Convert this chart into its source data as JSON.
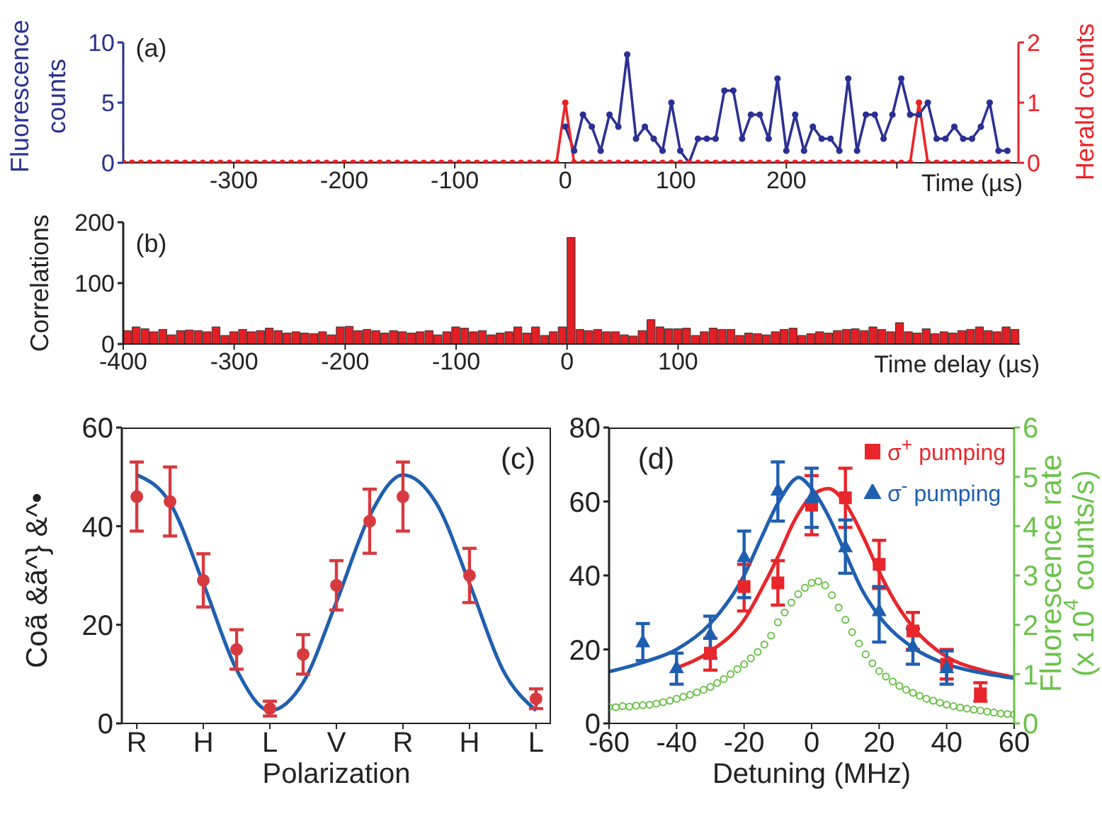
{
  "chart_data": [
    {
      "type": "line",
      "ylabel": "Fluorescence\ncounts",
      "y2label": "Herald counts",
      "xlabel": "Time (µs)",
      "annotations": [
        "(a)"
      ],
      "marker": "circle",
      "xlim": [
        -400,
        410
      ],
      "xticks": [
        -300,
        -200,
        -100,
        0,
        100,
        200,
        {
          "value": 300,
          "label": null
        }
      ],
      "ylim": [
        0,
        10
      ],
      "yticks": [
        0,
        5,
        10
      ],
      "y2lim": [
        0,
        2
      ],
      "y2ticks": [
        0,
        1,
        2
      ],
      "series": [
        {
          "color": "#2b3192",
          "x": [
            0,
            8,
            16,
            24,
            32,
            40,
            48,
            56,
            64,
            72,
            80,
            88,
            96,
            104,
            112,
            120,
            128,
            136,
            144,
            152,
            160,
            168,
            176,
            184,
            192,
            200,
            208,
            216,
            224,
            232,
            240,
            248,
            256,
            264,
            272,
            280,
            288,
            296,
            304,
            312,
            320,
            328,
            336,
            344,
            352,
            360,
            368,
            376,
            384,
            392,
            400
          ],
          "values": [
            3,
            1,
            4,
            3,
            1,
            4,
            3,
            9,
            2,
            3,
            2,
            1,
            5,
            1,
            0,
            2,
            2,
            2,
            6,
            6,
            2,
            4,
            4,
            2,
            7,
            1,
            4,
            1,
            3,
            2,
            2,
            1,
            7,
            1,
            4,
            4,
            2,
            4,
            7,
            4,
            4,
            5,
            2,
            2,
            3,
            2,
            2,
            3,
            5,
            1,
            1
          ]
        },
        {
          "color": "#ee2226",
          "axis": "y2",
          "x": [
            -400,
            -392,
            -384,
            -376,
            -368,
            -360,
            -352,
            -344,
            -336,
            -328,
            -320,
            -312,
            -304,
            -296,
            -288,
            -280,
            -272,
            -264,
            -256,
            -248,
            -240,
            -232,
            -224,
            -216,
            -208,
            -200,
            -192,
            -184,
            -176,
            -168,
            -160,
            -152,
            -144,
            -136,
            -128,
            -120,
            -112,
            -104,
            -96,
            -88,
            -80,
            -72,
            -64,
            -56,
            -48,
            -40,
            -32,
            -24,
            -16,
            -8,
            0,
            8,
            16,
            24,
            32,
            40,
            48,
            56,
            64,
            72,
            80,
            88,
            96,
            104,
            112,
            120,
            128,
            136,
            144,
            152,
            160,
            168,
            176,
            184,
            192,
            200,
            208,
            216,
            224,
            232,
            240,
            248,
            256,
            264,
            272,
            280,
            288,
            296,
            304,
            312,
            320,
            328,
            336,
            344,
            352,
            360,
            368,
            376,
            384,
            392,
            400
          ],
          "values": [
            0,
            0,
            0,
            0,
            0,
            0,
            0,
            0,
            0,
            0,
            0,
            0,
            0,
            0,
            0,
            0,
            0,
            0,
            0,
            0,
            0,
            0,
            0,
            0,
            0,
            0,
            0,
            0,
            0,
            0,
            0,
            0,
            0,
            0,
            0,
            0,
            0,
            0,
            0,
            0,
            0,
            0,
            0,
            0,
            0,
            0,
            0,
            0,
            0,
            0,
            1,
            0,
            0,
            0,
            0,
            0,
            0,
            0,
            0,
            0,
            0,
            0,
            0,
            0,
            0,
            0,
            0,
            0,
            0,
            0,
            0,
            0,
            0,
            0,
            0,
            0,
            0,
            0,
            0,
            0,
            0,
            0,
            0,
            0,
            0,
            0,
            0,
            0,
            0,
            0,
            1,
            0,
            0,
            0,
            0,
            0,
            0,
            0,
            0,
            0,
            0
          ]
        }
      ]
    },
    {
      "type": "histogram",
      "ylabel": "Correlations",
      "xlabel": "Time delay (µs)",
      "annotations": [
        "(b)"
      ],
      "color": "#e31e24",
      "xlim": [
        -400,
        408
      ],
      "xticks": [
        -400,
        -300,
        -200,
        -100,
        0,
        100
      ],
      "ylim": [
        0,
        200
      ],
      "yticks": [
        0,
        100,
        200
      ],
      "bins": [
        -400,
        -392,
        -384,
        -376,
        -368,
        -360,
        -352,
        -344,
        -336,
        -328,
        -320,
        -312,
        -304,
        -296,
        -288,
        -280,
        -272,
        -264,
        -256,
        -248,
        -240,
        -232,
        -224,
        -216,
        -208,
        -200,
        -192,
        -184,
        -176,
        -168,
        -160,
        -152,
        -144,
        -136,
        -128,
        -120,
        -112,
        -104,
        -96,
        -88,
        -80,
        -72,
        -64,
        -56,
        -48,
        -40,
        -32,
        -24,
        -16,
        -8,
        0,
        8,
        16,
        24,
        32,
        40,
        48,
        56,
        64,
        72,
        80,
        88,
        96,
        104,
        112,
        120,
        128,
        136,
        144,
        152,
        160,
        168,
        176,
        184,
        192,
        200,
        208,
        216,
        224,
        232,
        240,
        248,
        256,
        264,
        272,
        280,
        288,
        296,
        304,
        312,
        320,
        328,
        336,
        344,
        352,
        360,
        368,
        376,
        384,
        392,
        400,
        408
      ],
      "values": [
        22,
        28,
        25,
        20,
        24,
        15,
        22,
        23,
        22,
        20,
        28,
        14,
        20,
        24,
        20,
        22,
        26,
        22,
        18,
        20,
        18,
        17,
        20,
        15,
        28,
        29,
        22,
        24,
        22,
        18,
        22,
        20,
        18,
        20,
        22,
        15,
        20,
        28,
        26,
        20,
        22,
        15,
        18,
        20,
        28,
        18,
        28,
        14,
        20,
        28,
        175,
        24,
        22,
        24,
        20,
        20,
        15,
        13,
        22,
        40,
        28,
        25,
        25,
        26,
        14,
        20,
        26,
        24,
        24,
        14,
        18,
        17,
        15,
        20,
        24,
        26,
        14,
        17,
        20,
        18,
        22,
        24,
        25,
        22,
        28,
        24,
        20,
        35,
        20,
        18,
        25,
        17,
        20,
        18,
        22,
        24,
        28,
        22,
        20,
        28,
        24
      ]
    },
    {
      "type": "scatter",
      "ylabel": "Coã &ã^} &^•",
      "xlabel": "Polarization",
      "annotations": [
        "(c)"
      ],
      "categories": [
        "R",
        null,
        "H",
        null,
        "L",
        null,
        "V",
        null,
        "R",
        null,
        "H",
        null,
        "L"
      ],
      "ylim": [
        0,
        60
      ],
      "yticks": [
        0,
        20,
        40,
        60
      ],
      "series": [
        {
          "type": "line",
          "color": "#1f5fb0",
          "marker": "none",
          "values": [
            50.4,
            44.7,
            28.4,
            10.9,
            2.6,
            8.3,
            24.6,
            42.1,
            50.4,
            44.7,
            28.4,
            10.9,
            2.6
          ]
        },
        {
          "type": "scatter",
          "color": "#d63a3f",
          "marker": "circle",
          "values": [
            46,
            45,
            29,
            15,
            3,
            14,
            28,
            41,
            46,
            null,
            30,
            null,
            5
          ],
          "errors": [
            7,
            7,
            5.4,
            4,
            1.5,
            4,
            5,
            6.5,
            7,
            null,
            5.5,
            null,
            2
          ]
        }
      ]
    },
    {
      "type": "scatter",
      "y2label": "Fluorescence rate\n(x 10$^{4}$ counts/s)",
      "xlabel": "Detuning (MHz)",
      "annotations": [
        "(d)"
      ],
      "legend": "top right",
      "xlim": [
        -60,
        60
      ],
      "xticks": [
        -60,
        -40,
        -20,
        0,
        20,
        40,
        60
      ],
      "ylim": [
        0,
        80
      ],
      "yticks": [
        0,
        20,
        40,
        60,
        80
      ],
      "y2lim": [
        0,
        6
      ],
      "y2ticks": [
        0,
        1,
        2,
        3,
        4,
        5,
        6
      ],
      "series": [
        {
          "type": "scatter",
          "axis": "y2",
          "color": "#6cc24a",
          "marker": "circle",
          "x": [
            -60,
            -58,
            -56,
            -54,
            -52,
            -50,
            -48,
            -46,
            -44,
            -42,
            -40,
            -38,
            -36,
            -34,
            -32,
            -30,
            -28,
            -26,
            -24,
            -22,
            -20,
            -18,
            -16,
            -14,
            -12,
            -10,
            -8,
            -6,
            -4,
            -2,
            0,
            2,
            4,
            6,
            8,
            10,
            12,
            14,
            16,
            18,
            20,
            22,
            24,
            26,
            28,
            30,
            32,
            34,
            36,
            38,
            40,
            42,
            44,
            46,
            48,
            50,
            52,
            54,
            56,
            58,
            60
          ],
          "values": [
            0.33,
            0.33,
            0.35,
            0.34,
            0.36,
            0.37,
            0.38,
            0.4,
            0.43,
            0.46,
            0.5,
            0.54,
            0.58,
            0.63,
            0.68,
            0.74,
            0.82,
            0.9,
            1.0,
            1.1,
            1.2,
            1.32,
            1.45,
            1.6,
            1.78,
            2.05,
            2.25,
            2.45,
            2.62,
            2.75,
            2.85,
            2.88,
            2.8,
            2.6,
            2.35,
            2.1,
            1.85,
            1.62,
            1.4,
            1.22,
            1.06,
            0.95,
            0.85,
            0.76,
            0.68,
            0.62,
            0.56,
            0.5,
            0.46,
            0.42,
            0.38,
            0.35,
            0.32,
            0.3,
            0.28,
            0.26,
            0.24,
            0.22,
            0.2,
            0.19,
            0.18
          ]
        },
        {
          "type": "line",
          "color": "#e8262b",
          "marker": "none",
          "x": [
            -40,
            -30,
            -20,
            -15,
            -10,
            -5,
            0,
            5,
            10,
            15,
            20,
            25,
            30,
            40,
            50,
            60
          ],
          "values": [
            15,
            19.5,
            28,
            36,
            45,
            55,
            61.5,
            63.5,
            59.5,
            51,
            41,
            32.5,
            26,
            18,
            14.5,
            12.5
          ]
        },
        {
          "type": "line",
          "color": "#1f5fb0",
          "marker": "none",
          "x": [
            -60,
            -50,
            -40,
            -30,
            -20,
            -15,
            -10,
            -5,
            -4,
            0,
            5,
            10,
            15,
            20,
            30,
            40,
            50,
            60
          ],
          "values": [
            14,
            16.5,
            20,
            27,
            40,
            50,
            59.5,
            66,
            66.5,
            63.5,
            56,
            46,
            36,
            29,
            20.5,
            16,
            13.7,
            12.2
          ]
        },
        {
          "name": "σ$^{+}$ pumping",
          "type": "scatter",
          "color": "#e8262b",
          "marker": "square",
          "x": [
            -30,
            -20,
            -10,
            0,
            10,
            20,
            30,
            40,
            50
          ],
          "values": [
            19,
            37,
            38,
            59,
            61,
            43,
            25,
            16,
            8
          ],
          "errors": [
            [
              14.4,
              23
            ],
            [
              30.4,
              43
            ],
            [
              32,
              44
            ],
            [
              51,
              67
            ],
            [
              53,
              69
            ],
            [
              36.5,
              49.5
            ],
            [
              20,
              30
            ],
            [
              12,
              20
            ],
            [
              6,
              11
            ]
          ]
        },
        {
          "name": "σ$^{-}$ pumping",
          "type": "scatter",
          "color": "#1f5fb0",
          "marker": "triangle",
          "x": [
            -50,
            -40,
            -30,
            -20,
            -10,
            0,
            10,
            20,
            30,
            40
          ],
          "values": [
            22,
            15,
            24,
            45,
            63,
            61,
            47.7,
            30.4,
            20.8,
            15
          ],
          "errors": [
            [
              17,
              27
            ],
            [
              10.6,
              19
            ],
            [
              17.6,
              29
            ],
            [
              34,
              52
            ],
            [
              54.7,
              70.7
            ],
            [
              53,
              69
            ],
            [
              40.6,
              55
            ],
            [
              22,
              37
            ],
            [
              16,
              25.6
            ],
            [
              10.6,
              19.6
            ]
          ]
        }
      ]
    }
  ]
}
